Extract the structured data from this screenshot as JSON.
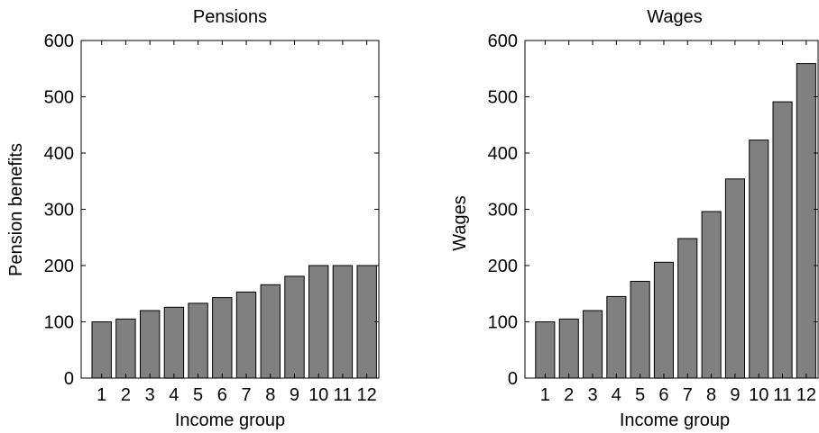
{
  "chart_data": [
    {
      "type": "bar",
      "title": "Pensions",
      "xlabel": "Income group",
      "ylabel": "Pension benefits",
      "categories": [
        "1",
        "2",
        "3",
        "4",
        "5",
        "6",
        "7",
        "8",
        "9",
        "10",
        "11",
        "12"
      ],
      "values": [
        100,
        105,
        120,
        126,
        133,
        143,
        153,
        166,
        181,
        200,
        200,
        200
      ],
      "ylim": [
        0,
        600
      ],
      "yticks": [
        "0",
        "100",
        "200",
        "300",
        "400",
        "500",
        "600"
      ],
      "bar_color": "#808080",
      "grid": false,
      "legend": "none"
    },
    {
      "type": "bar",
      "title": "Wages",
      "xlabel": "Income group",
      "ylabel": "Wages",
      "categories": [
        "1",
        "2",
        "3",
        "4",
        "5",
        "6",
        "7",
        "8",
        "9",
        "10",
        "11",
        "12"
      ],
      "values": [
        100,
        105,
        120,
        145,
        172,
        206,
        248,
        296,
        354,
        423,
        491,
        559
      ],
      "ylim": [
        0,
        600
      ],
      "yticks": [
        "0",
        "100",
        "200",
        "300",
        "400",
        "500",
        "600"
      ],
      "bar_color": "#808080",
      "grid": false,
      "legend": "none"
    }
  ]
}
